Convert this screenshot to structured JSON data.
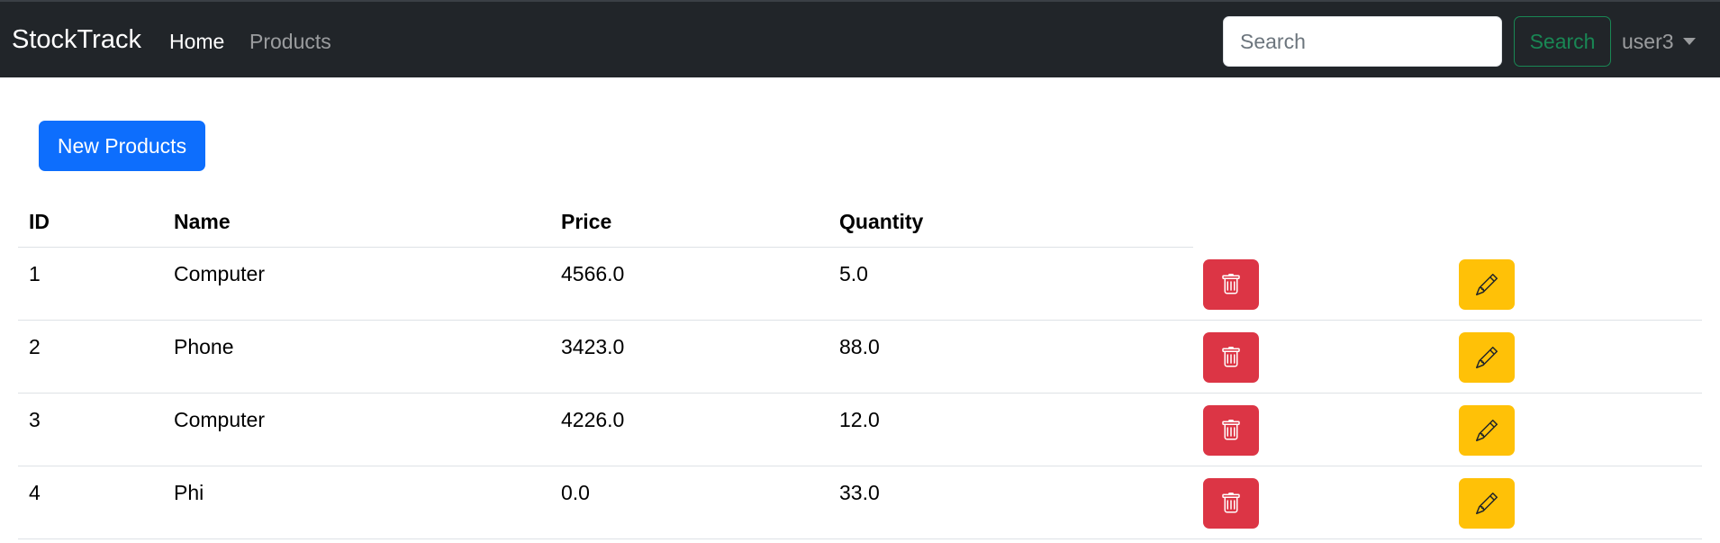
{
  "navbar": {
    "brand": "StockTrack",
    "links": [
      {
        "label": "Home"
      },
      {
        "label": "Products"
      }
    ],
    "search": {
      "placeholder": "Search",
      "value": ""
    },
    "search_button": "Search",
    "user": "user3"
  },
  "actions": {
    "new_button": "New Products"
  },
  "table": {
    "headers": [
      "ID",
      "Name",
      "Price",
      "Quantity"
    ],
    "rows": [
      {
        "id": "1",
        "name": "Computer",
        "price": "4566.0",
        "quantity": "5.0"
      },
      {
        "id": "2",
        "name": "Phone",
        "price": "3423.0",
        "quantity": "88.0"
      },
      {
        "id": "3",
        "name": "Computer",
        "price": "4226.0",
        "quantity": "12.0"
      },
      {
        "id": "4",
        "name": "Phi",
        "price": "0.0",
        "quantity": "33.0"
      }
    ],
    "row_actions": {
      "delete_icon": "trash-icon",
      "edit_icon": "pencil-icon"
    }
  },
  "colors": {
    "navbar_bg": "#212529",
    "primary": "#0d6efd",
    "success": "#198754",
    "danger": "#dc3545",
    "warning": "#ffc107"
  }
}
